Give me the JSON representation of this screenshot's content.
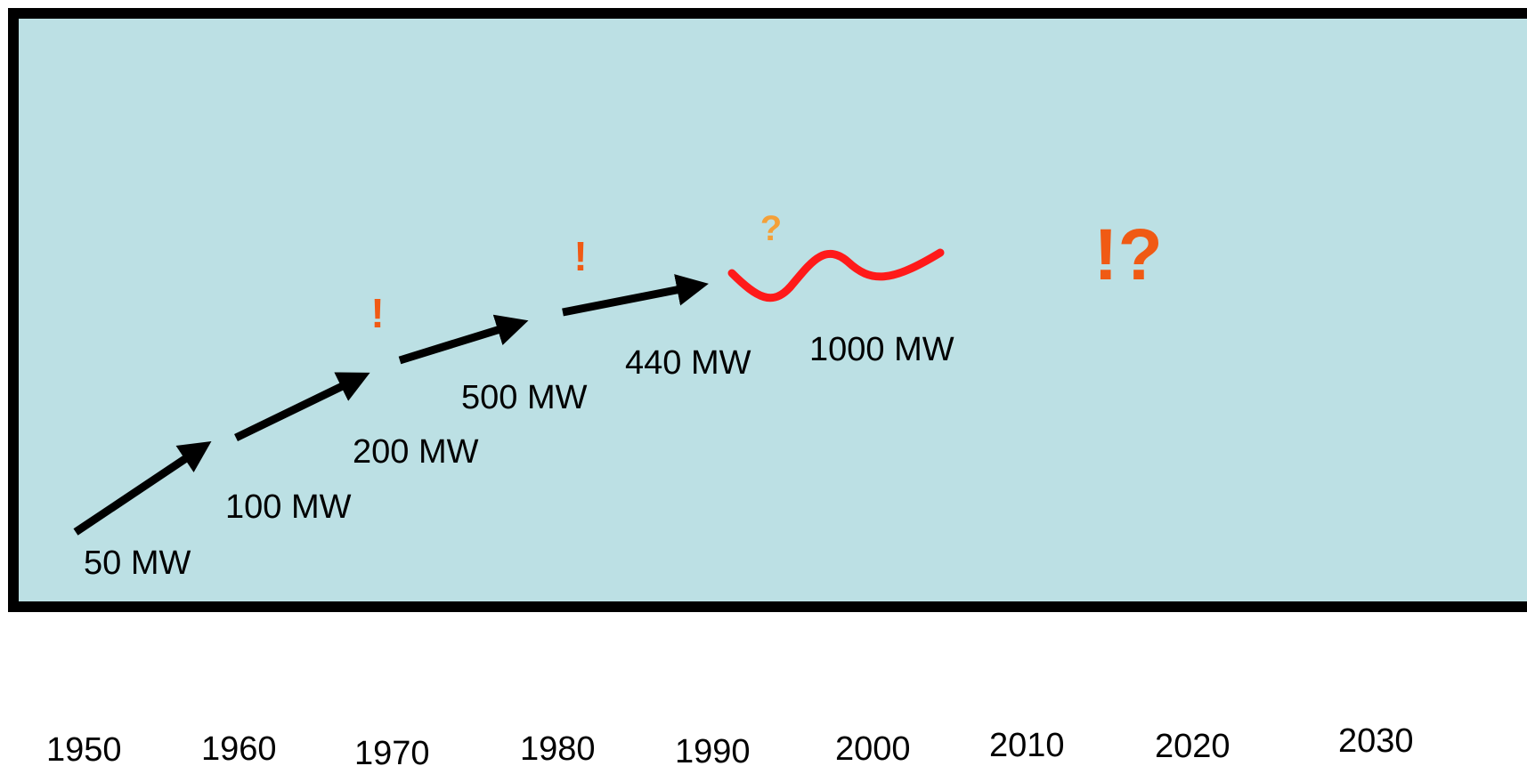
{
  "colors": {
    "background": "#bce0e4",
    "frame": "#000000",
    "arrow": "#000000",
    "wave": "#ff1a1a",
    "exclamation": "#f05a14",
    "question_small": "#f4a038",
    "exclamation_question": "#f05a14"
  },
  "capacity_labels": {
    "mw_50": "50 MW",
    "mw_100": "100 MW",
    "mw_200": "200 MW",
    "mw_500": "500 MW",
    "mw_440": "440 MW",
    "mw_1000": "1000 MW"
  },
  "marks": {
    "exclamation_1": "!",
    "exclamation_2": "!",
    "question": "?",
    "exclamation_question": "!?"
  },
  "timeline": {
    "years": [
      "1950",
      "1960",
      "1970",
      "1980",
      "1990",
      "2000",
      "2010",
      "2020",
      "2030"
    ]
  }
}
